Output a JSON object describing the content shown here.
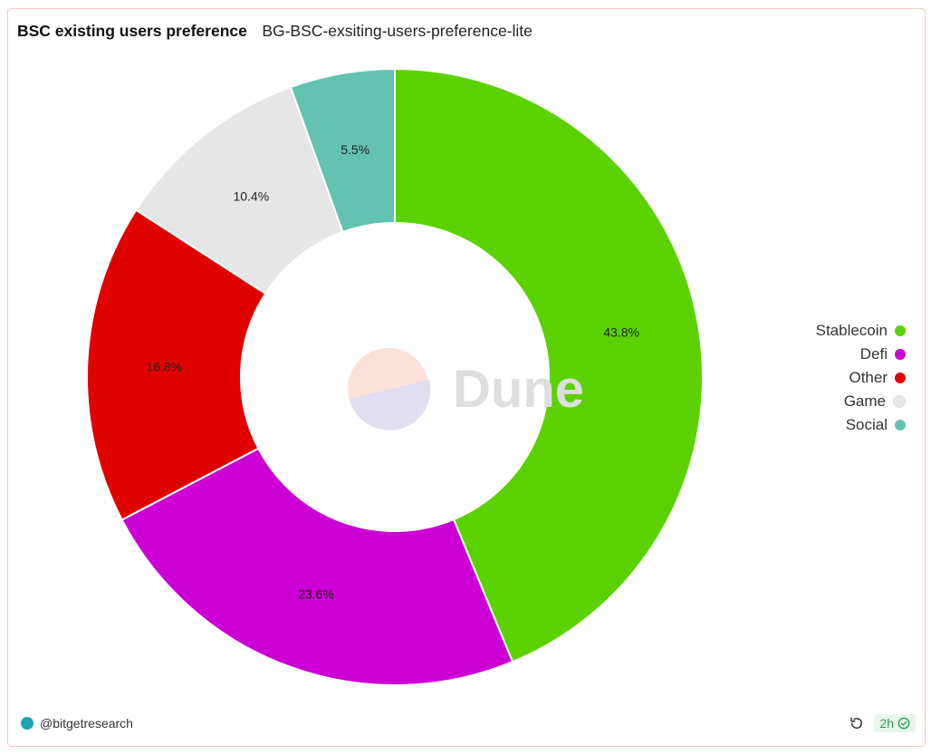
{
  "header": {
    "title": "BSC existing users preference",
    "subtitle": "BG-BSC-exsiting-users-preference-lite"
  },
  "chart_data": {
    "type": "pie",
    "donut": true,
    "categories": [
      "Stablecoin",
      "Defi",
      "Other",
      "Game",
      "Social"
    ],
    "values": [
      43.8,
      23.6,
      16.8,
      10.4,
      5.5
    ],
    "value_labels": [
      "43.8%",
      "23.6%",
      "16.8%",
      "10.4%",
      "5.5%"
    ],
    "colors": [
      "#5bd200",
      "#cc00d4",
      "#e10000",
      "#e6e6e6",
      "#63c3b0"
    ],
    "legend_position": "right"
  },
  "watermark": {
    "text": "Dune"
  },
  "footer": {
    "author": "@bitgetresearch",
    "age": "2h"
  }
}
